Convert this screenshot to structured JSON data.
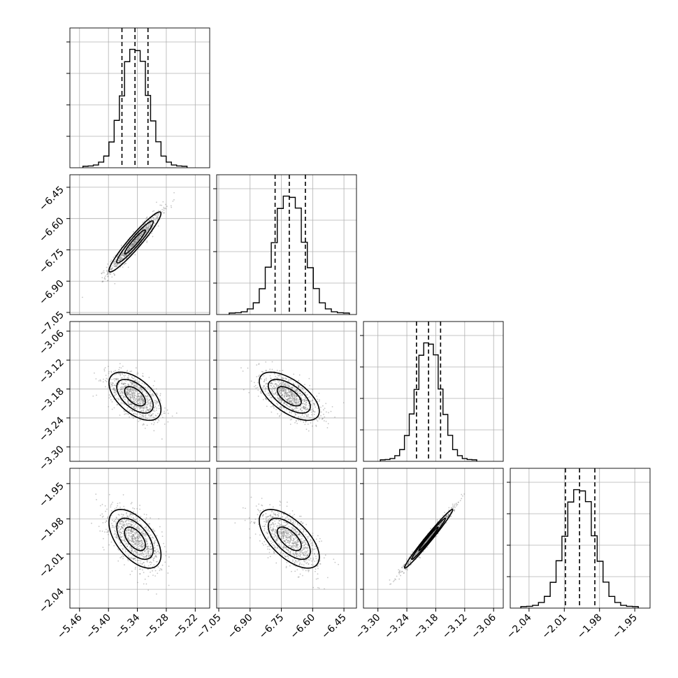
{
  "chart_data": {
    "type": "corner",
    "grid": true,
    "colors": {
      "line": "#000000",
      "grid": "#b0b0b0",
      "scatter": "#808080",
      "contour_fill": [
        "#d6d6d6",
        "#a8a8a8",
        "#6e6e6e"
      ]
    },
    "parameters": [
      {
        "mean": -5.345,
        "std": 0.027,
        "lim": [
          -5.48,
          -5.19
        ],
        "ticks": [
          -5.46,
          -5.4,
          -5.34,
          -5.28,
          -5.22
        ],
        "tick_labels": [
          "−5.46",
          "−5.40",
          "−5.34",
          "−5.28",
          "−5.22"
        ],
        "quantiles": [
          -5.372,
          -5.345,
          -5.318
        ]
      },
      {
        "mean": -6.712,
        "std": 0.072,
        "lim": [
          -7.06,
          -6.39
        ],
        "ticks": [
          -7.05,
          -6.9,
          -6.75,
          -6.6,
          -6.45
        ],
        "tick_labels": [
          "−7.05",
          "−6.90",
          "−6.75",
          "−6.60",
          "−6.45"
        ],
        "quantiles": [
          -6.78,
          -6.712,
          -6.635
        ]
      },
      {
        "mean": -3.195,
        "std": 0.025,
        "lim": [
          -3.33,
          -3.04
        ],
        "ticks": [
          -3.3,
          -3.24,
          -3.18,
          -3.12,
          -3.06
        ],
        "tick_labels": [
          "−3.30",
          "−3.24",
          "−3.18",
          "−3.12",
          "−3.06"
        ],
        "quantiles": [
          -3.22,
          -3.195,
          -3.17
        ]
      },
      {
        "mean": -1.997,
        "std": 0.0125,
        "lim": [
          -2.056,
          -1.937
        ],
        "ticks": [
          -2.04,
          -2.01,
          -1.98,
          -1.95
        ],
        "tick_labels": [
          "−2.04",
          "−2.01",
          "−1.98",
          "−1.95"
        ],
        "quantiles": [
          -2.009,
          -1.997,
          -1.984
        ]
      }
    ],
    "correlations": [
      {
        "row": 1,
        "col": 0,
        "rho": 0.95
      },
      {
        "row": 2,
        "col": 0,
        "rho": -0.55
      },
      {
        "row": 2,
        "col": 1,
        "rho": -0.62
      },
      {
        "row": 3,
        "col": 0,
        "rho": -0.55
      },
      {
        "row": 3,
        "col": 1,
        "rho": -0.62
      },
      {
        "row": 3,
        "col": 2,
        "rho": 0.985
      }
    ]
  }
}
